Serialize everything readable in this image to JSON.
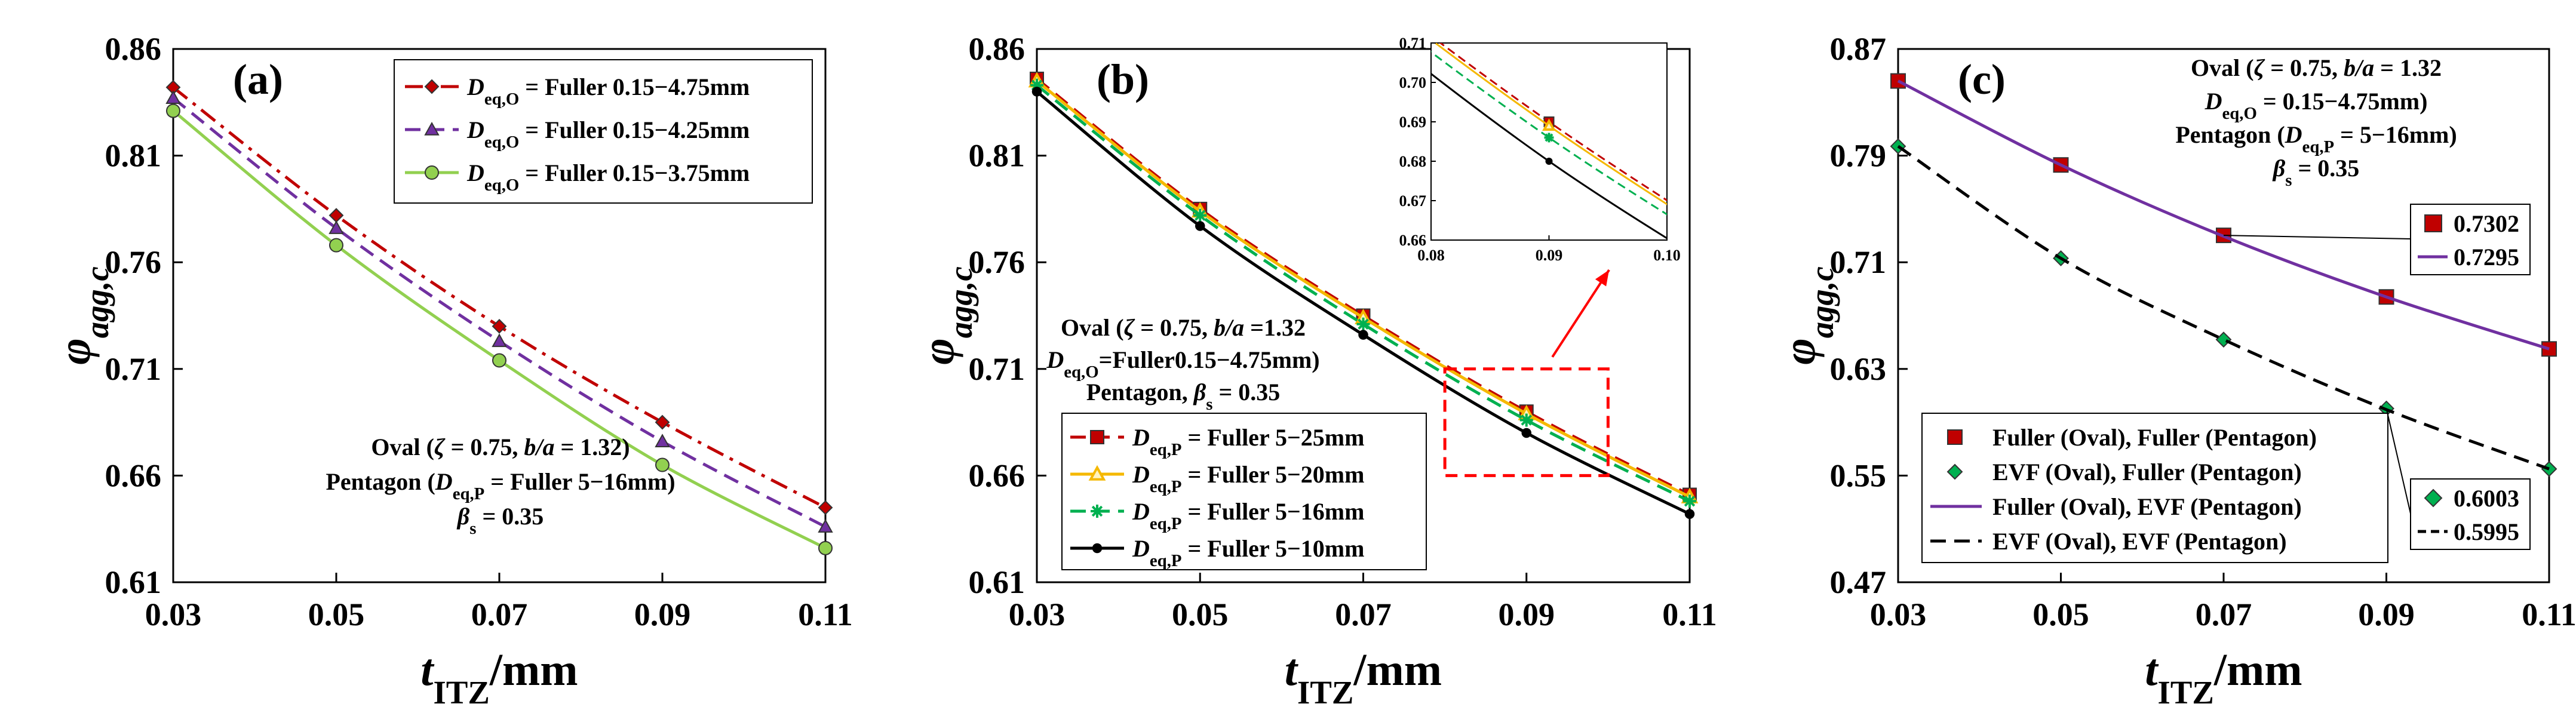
{
  "chart_data": [
    {
      "type": "line",
      "panel_label": "(a)",
      "xlabel": {
        "main": "t",
        "sub": "ITZ",
        "unit": "/mm"
      },
      "ylabel": {
        "main": "φ",
        "sub": "agg,c"
      },
      "xlim": [
        0.03,
        0.11
      ],
      "ylim": [
        0.61,
        0.86
      ],
      "xticks": [
        "0.03",
        "0.05",
        "0.07",
        "0.09",
        "0.11"
      ],
      "yticks": [
        "0.61",
        "0.66",
        "0.71",
        "0.76",
        "0.81",
        "0.86"
      ],
      "x": [
        0.03,
        0.05,
        0.07,
        0.09,
        0.11
      ],
      "series": [
        {
          "name": "Fuller 0.15−4.75mm",
          "prefix": "D",
          "sub": "eq,O",
          "eq": " = ",
          "color": "#C00000",
          "dash": "dashdot",
          "marker": "diamond",
          "values": [
            0.842,
            0.782,
            0.73,
            0.685,
            0.645
          ]
        },
        {
          "name": "Fuller 0.15−4.25mm",
          "prefix": "D",
          "sub": "eq,O",
          "eq": " = ",
          "color": "#7030A0",
          "dash": "dash",
          "marker": "triangle",
          "values": [
            0.837,
            0.776,
            0.723,
            0.676,
            0.636
          ]
        },
        {
          "name": "Fuller 0.15−3.75mm",
          "prefix": "D",
          "sub": "eq,O",
          "eq": " = ",
          "color": "#92D050",
          "dash": "solid",
          "marker": "circle",
          "values": [
            0.831,
            0.768,
            0.714,
            0.665,
            0.626
          ]
        }
      ],
      "annotation": [
        "Oval (ζ = 0.75, b/a = 1.32)",
        "Pentagon (D_eq,P = Fuller 5−16mm)",
        "β_s = 0.35"
      ]
    },
    {
      "type": "line",
      "panel_label": "(b)",
      "xlabel": {
        "main": "t",
        "sub": "ITZ",
        "unit": "/mm"
      },
      "ylabel": {
        "main": "φ",
        "sub": "agg,c"
      },
      "xlim": [
        0.03,
        0.11
      ],
      "ylim": [
        0.61,
        0.86
      ],
      "xticks": [
        "0.03",
        "0.05",
        "0.07",
        "0.09",
        "0.11"
      ],
      "yticks": [
        "0.61",
        "0.66",
        "0.71",
        "0.76",
        "0.81",
        "0.86"
      ],
      "x": [
        0.03,
        0.05,
        0.07,
        0.09,
        0.11
      ],
      "series": [
        {
          "name": "Fuller 5−25mm",
          "prefix": "D",
          "sub": "eq,P",
          "eq": " = ",
          "color": "#C00000",
          "dash": "dash",
          "marker": "square",
          "values": [
            0.846,
            0.785,
            0.735,
            0.69,
            0.651
          ]
        },
        {
          "name": "Fuller 5−20mm",
          "prefix": "D",
          "sub": "eq,P",
          "eq": " = ",
          "color": "#F5B800",
          "dash": "solid",
          "marker": "triangle-open",
          "values": [
            0.845,
            0.784,
            0.734,
            0.689,
            0.65
          ]
        },
        {
          "name": "Fuller 5−16mm",
          "prefix": "D",
          "sub": "eq,P",
          "eq": " = ",
          "color": "#00B050",
          "dash": "dash",
          "marker": "star",
          "values": [
            0.843,
            0.782,
            0.731,
            0.686,
            0.648
          ]
        },
        {
          "name": "Fuller 5−10mm",
          "prefix": "D",
          "sub": "eq,P",
          "eq": " = ",
          "color": "#000000",
          "dash": "solid",
          "marker": "circle-filled",
          "values": [
            0.84,
            0.777,
            0.726,
            0.68,
            0.642
          ]
        }
      ],
      "annotation": [
        "Oval (ζ = 0.75, b/a =1.32",
        "D_eq,O=Fuller0.15−4.75mm)",
        "Pentagon, β_s = 0.35"
      ],
      "inset": {
        "xlim": [
          0.08,
          0.1
        ],
        "ylim": [
          0.66,
          0.71
        ],
        "xticks": [
          "0.08",
          "0.09",
          "0.10"
        ],
        "yticks": [
          "0.66",
          "0.67",
          "0.68",
          "0.69",
          "0.70",
          "0.71"
        ]
      }
    },
    {
      "type": "line",
      "panel_label": "(c)",
      "xlabel": {
        "main": "t",
        "sub": "ITZ",
        "unit": "/mm"
      },
      "ylabel": {
        "main": "φ",
        "sub": "agg,c"
      },
      "xlim": [
        0.03,
        0.11
      ],
      "ylim": [
        0.47,
        0.87
      ],
      "xticks": [
        "0.03",
        "0.05",
        "0.07",
        "0.09",
        "0.11"
      ],
      "yticks": [
        "0.47",
        "0.55",
        "0.63",
        "0.71",
        "0.79",
        "0.87"
      ],
      "x": [
        0.03,
        0.05,
        0.07,
        0.09,
        0.11
      ],
      "series": [
        {
          "name": "Fuller (Oval), Fuller (Pentagon)",
          "color": "#C00000",
          "type": "marker",
          "marker": "square",
          "values": [
            0.846,
            0.783,
            0.7302,
            0.684,
            0.645
          ]
        },
        {
          "name": "EVF (Oval), Fuller (Pentagon)",
          "color": "#00B050",
          "type": "marker",
          "marker": "diamond",
          "values": [
            0.797,
            0.713,
            0.652,
            0.6003,
            0.555
          ]
        },
        {
          "name": "Fuller (Oval), EVF (Pentagon)",
          "color": "#7030A0",
          "type": "line",
          "dash": "solid",
          "values": [
            0.846,
            0.783,
            0.7295,
            0.684,
            0.645
          ]
        },
        {
          "name": "EVF (Oval), EVF (Pentagon)",
          "color": "#000000",
          "type": "line",
          "dash": "dash",
          "values": [
            0.797,
            0.713,
            0.652,
            0.5995,
            0.555
          ]
        }
      ],
      "annotation": [
        "Oval (ζ = 0.75, b/a = 1.32",
        "D_eq,O = 0.15−4.75mm)",
        "Pentagon (D_eq,P = 5−16mm)",
        "β_s = 0.35"
      ],
      "callouts": [
        {
          "marker_value": "0.7302",
          "line_value": "0.7295"
        },
        {
          "marker_value": "0.6003",
          "line_value": "0.5995"
        }
      ]
    }
  ]
}
